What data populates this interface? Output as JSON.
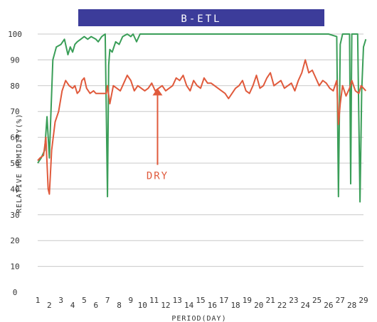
{
  "chart_data": {
    "type": "line",
    "title": "B-ETL",
    "xlabel": "PERIOD(DAY)",
    "ylabel": "RELATIVE HUMIDITY(%)",
    "xlim": [
      1,
      29
    ],
    "ylim": [
      0,
      100
    ],
    "xticks": [
      1,
      2,
      3,
      4,
      5,
      6,
      7,
      8,
      9,
      10,
      11,
      12,
      13,
      14,
      15,
      16,
      17,
      18,
      19,
      20,
      21,
      22,
      23,
      24,
      25,
      26,
      27,
      28,
      29
    ],
    "yticks": [
      0,
      10,
      20,
      30,
      40,
      50,
      60,
      70,
      80,
      90,
      100
    ],
    "grid": true,
    "colors": {
      "title_bg": "#3c3c9a",
      "grid": "#c8c8c8",
      "axis": "#333333"
    },
    "series": [
      {
        "color": "#3a9e58",
        "x": [
          1.0,
          1.3,
          1.6,
          1.8,
          2.0,
          2.1,
          2.3,
          2.6,
          3.0,
          3.3,
          3.6,
          3.8,
          4.0,
          4.2,
          4.4,
          4.7,
          5.0,
          5.3,
          5.6,
          6.0,
          6.2,
          6.5,
          6.8,
          7.0,
          7.1,
          7.2,
          7.4,
          7.7,
          8.0,
          8.3,
          8.7,
          9.0,
          9.2,
          9.5,
          9.8,
          10.0,
          10.3,
          10.7,
          11.0,
          12,
          14,
          16,
          18,
          20,
          22,
          24,
          26,
          26.7,
          26.85,
          27.0,
          27.2,
          27.6,
          27.8,
          27.9,
          28.0,
          28.2,
          28.5,
          28.7,
          28.85,
          29.0,
          29.2
        ],
        "y": [
          50,
          52,
          55,
          68,
          52,
          65,
          90,
          95,
          96,
          98,
          92,
          95,
          93,
          96,
          97,
          98,
          99,
          98,
          99,
          98,
          97,
          99,
          100,
          37,
          88,
          94,
          93,
          97,
          96,
          99,
          100,
          99,
          100,
          97,
          100,
          100,
          100,
          100,
          100,
          100,
          100,
          100,
          100,
          100,
          100,
          100,
          100,
          99,
          37,
          96,
          100,
          100,
          100,
          42,
          100,
          100,
          100,
          35,
          78,
          95,
          98
        ]
      },
      {
        "color": "#e05a3c",
        "x": [
          1.0,
          1.2,
          1.5,
          1.7,
          1.9,
          2.0,
          2.2,
          2.5,
          2.8,
          3.1,
          3.4,
          3.7,
          4.0,
          4.2,
          4.4,
          4.6,
          4.8,
          5.0,
          5.2,
          5.5,
          5.8,
          6.0,
          6.3,
          6.6,
          6.9,
          7.0,
          7.2,
          7.5,
          7.8,
          8.1,
          8.4,
          8.7,
          9.0,
          9.3,
          9.6,
          9.9,
          10.2,
          10.5,
          10.8,
          11.1,
          11.4,
          11.7,
          12.0,
          12.3,
          12.6,
          12.9,
          13.2,
          13.5,
          13.8,
          14.1,
          14.4,
          14.7,
          15.0,
          15.3,
          15.6,
          15.9,
          16.2,
          16.5,
          16.8,
          17.1,
          17.4,
          17.7,
          18.0,
          18.3,
          18.6,
          18.9,
          19.2,
          19.5,
          19.8,
          20.1,
          20.4,
          20.7,
          21.0,
          21.3,
          21.6,
          21.9,
          22.2,
          22.5,
          22.8,
          23.1,
          23.4,
          23.7,
          24.0,
          24.3,
          24.6,
          24.9,
          25.2,
          25.5,
          25.8,
          26.1,
          26.4,
          26.7,
          26.85,
          27.0,
          27.2,
          27.5,
          27.8,
          28.0,
          28.3,
          28.6,
          28.8,
          29.0,
          29.2
        ],
        "y": [
          51,
          52,
          53,
          60,
          40,
          38,
          55,
          66,
          70,
          78,
          82,
          80,
          79,
          80,
          77,
          78,
          82,
          83,
          79,
          77,
          78,
          77,
          77,
          77,
          77,
          80,
          73,
          80,
          79,
          78,
          81,
          84,
          82,
          78,
          80,
          79,
          78,
          79,
          81,
          78,
          79,
          80,
          78,
          79,
          80,
          83,
          82,
          84,
          80,
          78,
          82,
          80,
          79,
          83,
          81,
          81,
          80,
          79,
          78,
          77,
          75,
          77,
          79,
          80,
          82,
          78,
          77,
          80,
          84,
          79,
          80,
          83,
          85,
          80,
          81,
          82,
          79,
          80,
          81,
          78,
          82,
          85,
          90,
          85,
          86,
          83,
          80,
          82,
          81,
          79,
          78,
          82,
          65,
          73,
          80,
          76,
          79,
          82,
          78,
          77,
          80,
          79,
          78
        ]
      }
    ],
    "annotations": [
      {
        "text": "DRY",
        "x": 11.3,
        "y": 46,
        "arrow_to": [
          11.3,
          79
        ],
        "color": "#e05a3c"
      }
    ]
  }
}
